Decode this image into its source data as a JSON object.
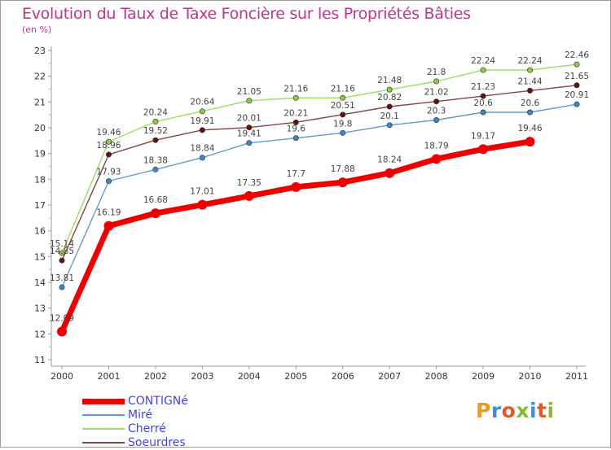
{
  "header": {
    "title": "Evolution du Taux de Taxe Foncière sur les Propriétés Bâties",
    "unit": "(en %)"
  },
  "logo": {
    "text": "Proxiti"
  },
  "chart_data": {
    "type": "line",
    "title": "Evolution du Taux de Taxe Foncière sur les Propriétés Bâties",
    "ylabel": "(en %)",
    "xlabel": "",
    "x": [
      "2000",
      "2001",
      "2002",
      "2003",
      "2004",
      "2005",
      "2006",
      "2007",
      "2008",
      "2009",
      "2010",
      "2011"
    ],
    "ylim": [
      11,
      23
    ],
    "yticks": [
      "11",
      "12",
      "13",
      "14",
      "15",
      "16",
      "17",
      "18",
      "19",
      "20",
      "21",
      "22",
      "23"
    ],
    "grid": false,
    "legend": "bottom-left",
    "series": [
      {
        "name": "CONTIGNé",
        "color": "#ee0000",
        "values": [
          12.09,
          16.19,
          16.68,
          17.01,
          17.35,
          17.7,
          17.88,
          18.24,
          18.79,
          19.17,
          19.46,
          null
        ],
        "labels": [
          "12.09",
          "16.19",
          "16.68",
          "17.01",
          "17.35",
          "17.7",
          "17.88",
          "18.24",
          "18.79",
          "19.17",
          "19.46",
          ""
        ]
      },
      {
        "name": "Miré",
        "color": "#6699cc",
        "marker": "#3a88cc",
        "values": [
          13.81,
          17.93,
          18.38,
          18.84,
          19.41,
          19.6,
          19.8,
          20.1,
          20.3,
          20.6,
          20.6,
          20.91
        ],
        "labels": [
          "13.81",
          "17.93",
          "18.38",
          "18.84",
          "19.41",
          "19.6",
          "19.8",
          "20.1",
          "20.3",
          "20.6",
          "20.6",
          "20.91"
        ]
      },
      {
        "name": "Cherré",
        "color": "#99dd66",
        "marker": "#88cc44",
        "values": [
          15.14,
          19.46,
          20.24,
          20.64,
          21.05,
          21.16,
          21.16,
          21.48,
          21.8,
          22.24,
          22.24,
          22.46
        ],
        "labels": [
          "15.14",
          "19.46",
          "20.24",
          "20.64",
          "21.05",
          "21.16",
          "21.16",
          "21.48",
          "21.8",
          "22.24",
          "22.24",
          "22.46"
        ]
      },
      {
        "name": "Soeurdres",
        "color": "#884444",
        "marker": "#661111",
        "values": [
          14.85,
          18.96,
          19.52,
          19.91,
          20.01,
          20.21,
          20.51,
          20.82,
          21.02,
          21.23,
          21.44,
          21.65
        ],
        "labels": [
          "14.85",
          "18.96",
          "19.52",
          "19.91",
          "20.01",
          "20.21",
          "20.51",
          "20.82",
          "21.02",
          "21.23",
          "21.44",
          "21.65"
        ]
      }
    ]
  }
}
